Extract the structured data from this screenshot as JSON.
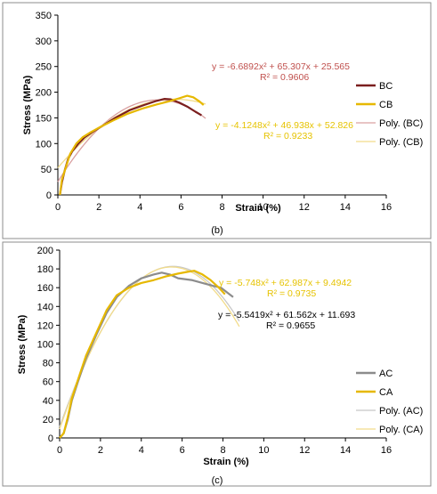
{
  "chart_data": [
    {
      "type": "line",
      "panel_label": "(b)",
      "xlabel": "Strain (%)",
      "ylabel": "Stress (MPa)",
      "xlim": [
        0,
        16
      ],
      "ylim": [
        0,
        350
      ],
      "xticks": [
        0,
        2,
        4,
        6,
        8,
        10,
        12,
        14,
        16
      ],
      "yticks": [
        0,
        50,
        100,
        150,
        200,
        250,
        300,
        350
      ],
      "grid": false,
      "legend_position": "right",
      "series": [
        {
          "name": "BC",
          "kind": "data",
          "color": "#7b1f1f",
          "x": [
            0.1,
            0.2,
            0.35,
            0.5,
            0.7,
            1.0,
            1.3,
            1.7,
            2.2,
            2.8,
            3.5,
            4.2,
            4.8,
            5.2,
            5.5,
            5.9,
            6.3,
            6.7,
            7.0
          ],
          "y": [
            0,
            25,
            50,
            70,
            85,
            100,
            112,
            123,
            135,
            150,
            165,
            175,
            183,
            187,
            186,
            180,
            172,
            162,
            155
          ]
        },
        {
          "name": "CB",
          "kind": "data",
          "color": "#e6b800",
          "x": [
            0.1,
            0.2,
            0.4,
            0.6,
            0.9,
            1.2,
            1.6,
            2.1,
            2.7,
            3.4,
            4.1,
            4.8,
            5.4,
            5.9,
            6.3,
            6.6,
            6.9,
            7.1
          ],
          "y": [
            0,
            30,
            55,
            80,
            100,
            112,
            122,
            133,
            145,
            158,
            168,
            176,
            182,
            188,
            193,
            190,
            182,
            175
          ]
        },
        {
          "name": "Poly. (BC)",
          "kind": "fit",
          "color": "#d9a0a0",
          "equation": "y = -6.6892x² + 65.307x + 25.565",
          "r2": "R² = 0.9606",
          "eq_color": "#c0504d",
          "coef": [
            -6.6892,
            65.307,
            25.565
          ],
          "range": [
            0,
            7.2
          ]
        },
        {
          "name": "Poly. (CB)",
          "kind": "fit",
          "color": "#f2dc8a",
          "equation": "y = -4.1248x² + 46.938x + 52.826",
          "r2": "R² = 0.9233",
          "eq_color": "#e6c300",
          "coef": [
            -4.1248,
            46.938,
            52.826
          ],
          "range": [
            0,
            7.2
          ]
        }
      ]
    },
    {
      "type": "line",
      "panel_label": "(c)",
      "xlabel": "Strain (%)",
      "ylabel": "Stress (MPa)",
      "xlim": [
        0,
        16
      ],
      "ylim": [
        0,
        200
      ],
      "xticks": [
        0,
        2,
        4,
        6,
        8,
        10,
        12,
        14,
        16
      ],
      "yticks": [
        0,
        20,
        40,
        60,
        80,
        100,
        120,
        140,
        160,
        180,
        200
      ],
      "grid": false,
      "legend_position": "right",
      "series": [
        {
          "name": "AC",
          "kind": "data",
          "color": "#8c8c8c",
          "x": [
            0,
            0.2,
            0.4,
            0.6,
            0.9,
            1.3,
            1.8,
            2.3,
            2.8,
            3.4,
            4.0,
            4.6,
            5.0,
            5.4,
            5.8,
            6.5,
            7.0,
            7.5,
            7.9,
            8.2,
            8.5
          ],
          "y": [
            0,
            5,
            20,
            40,
            60,
            85,
            110,
            133,
            150,
            162,
            170,
            174,
            176,
            174,
            170,
            168,
            165,
            162,
            160,
            155,
            150
          ]
        },
        {
          "name": "CA",
          "kind": "data",
          "color": "#e6b800",
          "x": [
            0,
            0.2,
            0.4,
            0.6,
            0.9,
            1.3,
            1.8,
            2.3,
            2.8,
            3.4,
            4.0,
            4.6,
            5.2,
            5.8,
            6.3,
            6.6,
            7.0,
            7.4,
            7.8,
            8.1
          ],
          "y": [
            0,
            5,
            22,
            42,
            62,
            88,
            112,
            136,
            152,
            160,
            165,
            168,
            172,
            175,
            177,
            178,
            174,
            168,
            160,
            153
          ]
        },
        {
          "name": "Poly. (AC)",
          "kind": "fit",
          "color": "#c8c8c8",
          "equation": "y = -5.5419x² + 61.562x + 11.693",
          "r2": "R² = 0.9655",
          "eq_color": "#000000",
          "coef": [
            -5.5419,
            61.562,
            11.693
          ],
          "range": [
            0,
            8.8
          ]
        },
        {
          "name": "Poly. (CA)",
          "kind": "fit",
          "color": "#f2dc8a",
          "equation": "y = -5.748x² + 62.987x + 9.4942",
          "r2": "R² = 0.9735",
          "eq_color": "#e6c300",
          "coef": [
            -5.748,
            62.987,
            9.4942
          ],
          "range": [
            0,
            8.8
          ]
        }
      ]
    }
  ]
}
